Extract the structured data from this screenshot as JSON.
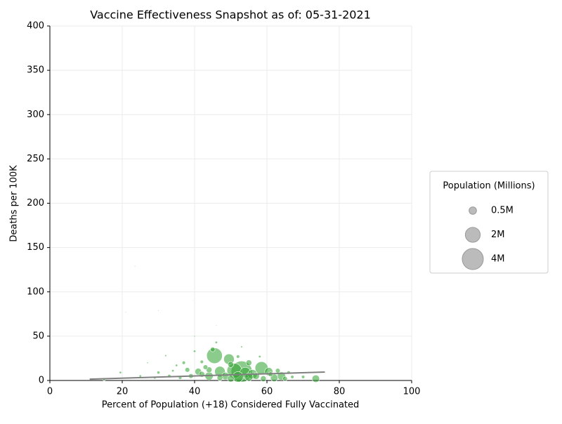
{
  "chart_data": {
    "type": "scatter",
    "title": "Vaccine Effectiveness Snapshot as of: 05-31-2021",
    "x_label": "Percent of Population (+18) Considered Fully Vaccinated",
    "y_label": "Deaths per 100K",
    "xlim": [
      0,
      100
    ],
    "xticks": [
      0,
      20,
      40,
      60,
      80,
      100
    ],
    "ylim": [
      0,
      400
    ],
    "yticks": [
      0,
      50,
      100,
      150,
      200,
      250,
      300,
      350,
      400
    ],
    "grid": true,
    "color": "#2ca02c",
    "x": [
      45.5,
      53,
      58.5,
      49.5,
      51,
      54,
      47,
      60.5,
      64,
      73.5,
      41,
      38,
      44,
      56,
      62,
      52,
      48.5,
      45,
      23.5,
      21,
      30,
      40,
      46,
      39.5,
      19.5,
      15,
      25,
      30,
      33,
      35,
      37,
      36,
      42,
      43,
      50,
      55,
      57,
      59,
      61,
      63,
      65,
      67,
      70,
      27,
      32,
      40,
      46,
      52,
      53,
      47,
      42,
      39,
      34,
      29,
      58,
      66,
      44,
      50,
      55
    ],
    "y": [
      28,
      10,
      14,
      24,
      11,
      9,
      10,
      10,
      5,
      2,
      10,
      12,
      5,
      7,
      3,
      4,
      5,
      35,
      129,
      77,
      79,
      50,
      62,
      90,
      9,
      1,
      5,
      9,
      5,
      17,
      20,
      3,
      21,
      15,
      18,
      20,
      5,
      2,
      7,
      11,
      2,
      4,
      4,
      20,
      28,
      33,
      43,
      27,
      38,
      3,
      7,
      5,
      11,
      3,
      27,
      9,
      12,
      2,
      4
    ],
    "sizes": [
      2.2,
      4,
      1.5,
      1,
      2,
      1,
      1,
      0.6,
      0.6,
      0.5,
      0.4,
      0.2,
      0.6,
      0.8,
      0.5,
      1,
      0.5,
      0.2,
      0.01,
      0.01,
      0.01,
      0.02,
      0.01,
      0.005,
      0.05,
      0.05,
      0.05,
      0.08,
      0.1,
      0.05,
      0.1,
      0.1,
      0.1,
      0.2,
      0.3,
      0.3,
      0.4,
      0.3,
      0.2,
      0.2,
      0.2,
      0.1,
      0.1,
      0.02,
      0.03,
      0.05,
      0.05,
      0.1,
      0.03,
      0.3,
      0.3,
      0.2,
      0.05,
      0.05,
      0.05,
      0.1,
      0.3,
      0.4,
      0.6
    ],
    "trendline": {
      "color": "#808080",
      "x": [
        11,
        76
      ],
      "y": [
        1.5,
        9.5
      ]
    },
    "legend": {
      "title": "Population (Millions)",
      "color": "#bbbbbb",
      "sizes": [
        {
          "value": 0.5,
          "label": "0.5M"
        },
        {
          "value": 2,
          "label": "2M"
        },
        {
          "value": 4,
          "label": "4M"
        }
      ]
    }
  }
}
